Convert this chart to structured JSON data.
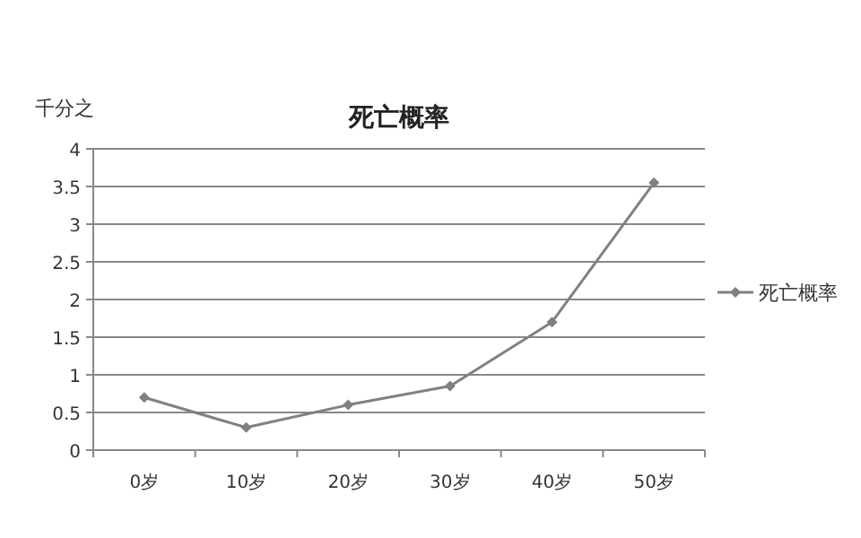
{
  "chart_data": {
    "type": "line",
    "title": "死亡概率",
    "ylabel": "千分之",
    "categories": [
      "0岁",
      "10岁",
      "20岁",
      "30岁",
      "40岁",
      "50岁"
    ],
    "series": [
      {
        "name": "死亡概率",
        "color": "#808080",
        "values": [
          0.7,
          0.3,
          0.6,
          0.85,
          1.7,
          3.55
        ]
      }
    ],
    "ylim": [
      0,
      4
    ],
    "yticks": [
      0,
      0.5,
      1,
      1.5,
      2,
      2.5,
      3,
      3.5,
      4
    ],
    "grid": "y",
    "legend": "right",
    "marker": "diamond",
    "line_style": "solid"
  }
}
